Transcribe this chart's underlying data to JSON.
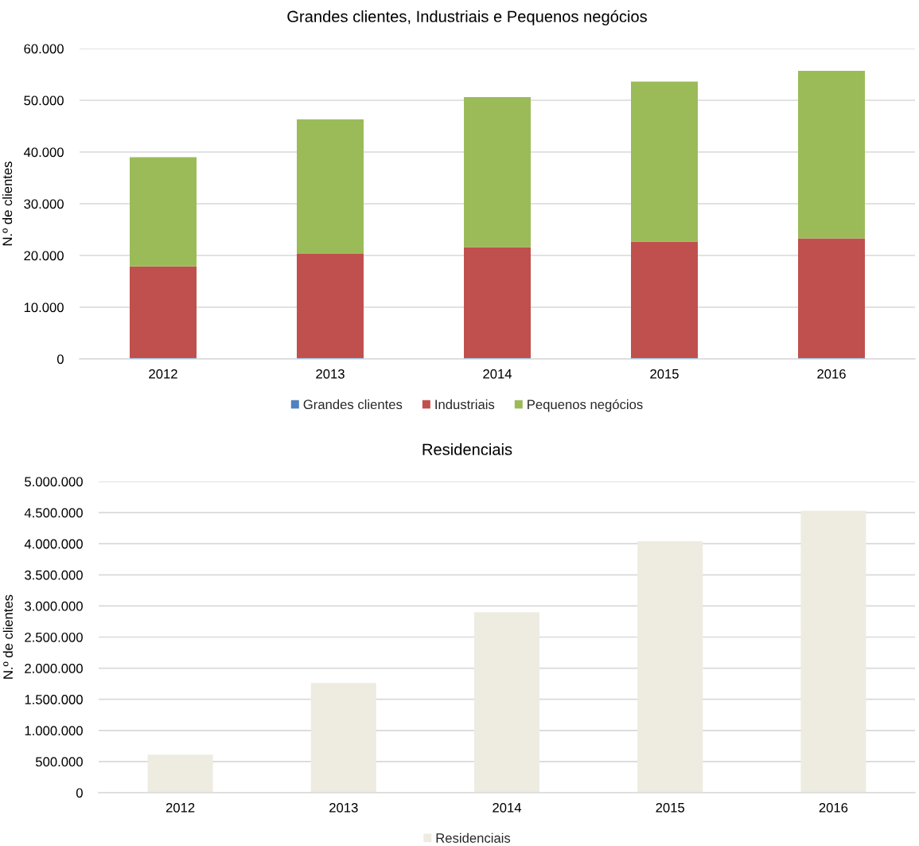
{
  "chart_data": [
    {
      "type": "bar",
      "title": "Grandes clientes, Industriais e Pequenos negócios",
      "ylabel": "N.º de clientes",
      "categories": [
        "2012",
        "2013",
        "2014",
        "2015",
        "2016"
      ],
      "stacked": true,
      "series": [
        {
          "name": "Grandes clientes",
          "color": "#4f81bd",
          "values": [
            300,
            300,
            300,
            300,
            300
          ]
        },
        {
          "name": "Industriais",
          "color": "#c0504d",
          "values": [
            17600,
            20000,
            21300,
            22400,
            23000
          ]
        },
        {
          "name": "Pequenos negócios",
          "color": "#9bbb59",
          "values": [
            21100,
            26000,
            29000,
            30900,
            32400
          ]
        }
      ],
      "ylim": [
        0,
        60000
      ],
      "yticks": [
        0,
        {
          "value": 10000,
          "label": "10.000"
        },
        {
          "value": 20000,
          "label": "20.000"
        },
        {
          "value": 30000,
          "label": "30.000"
        },
        {
          "value": 40000,
          "label": "40.000"
        },
        {
          "value": 50000,
          "label": "50.000"
        },
        {
          "value": 60000,
          "label": "60.000"
        }
      ],
      "grid": "y",
      "legend": "bottom"
    },
    {
      "type": "bar",
      "title": "Residenciais",
      "ylabel": "N.º de clientes",
      "categories": [
        "2012",
        "2013",
        "2014",
        "2015",
        "2016"
      ],
      "series": [
        {
          "name": "Residenciais",
          "color": "#eeece1",
          "values": [
            610000,
            1760000,
            2900000,
            4040000,
            4530000
          ]
        }
      ],
      "ylim": [
        0,
        5000000
      ],
      "yticks": [
        0,
        {
          "value": 500000,
          "label": "500.000"
        },
        {
          "value": 1000000,
          "label": "1.000.000"
        },
        {
          "value": 1500000,
          "label": "1.500.000"
        },
        {
          "value": 2000000,
          "label": "2.000.000"
        },
        {
          "value": 2500000,
          "label": "2.500.000"
        },
        {
          "value": 3000000,
          "label": "3.000.000"
        },
        {
          "value": 3500000,
          "label": "3.500.000"
        },
        {
          "value": 4000000,
          "label": "4.000.000"
        },
        {
          "value": 4500000,
          "label": "4.500.000"
        },
        {
          "value": 5000000,
          "label": "5.000.000"
        }
      ],
      "grid": "y",
      "legend": "bottom"
    }
  ]
}
